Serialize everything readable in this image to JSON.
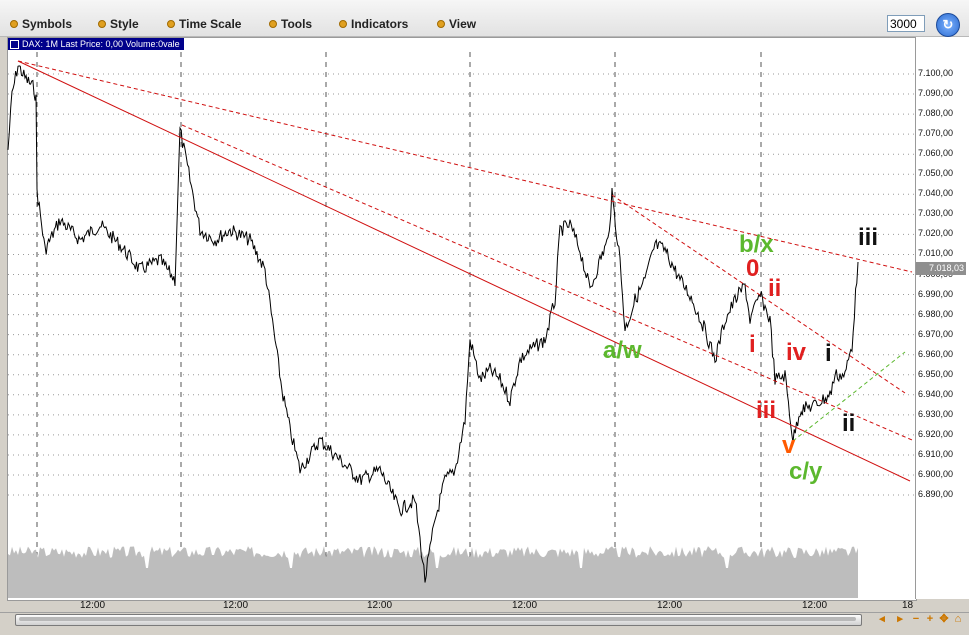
{
  "menu": {
    "symbols": "Symbols",
    "style": "Style",
    "time_scale": "Time Scale",
    "tools": "Tools",
    "indicators": "Indicators",
    "view": "View"
  },
  "interval_value": "3000",
  "legend_text": "DAX: 1M Last Price: 0,00 Volume:0vale",
  "last_price_tag": "7.018,03",
  "price_ticks": [
    "7.100,00",
    "7.090,00",
    "7.080,00",
    "7.070,00",
    "7.060,00",
    "7.050,00",
    "7.040,00",
    "7.030,00",
    "7.020,00",
    "7.010,00",
    "7.000,00",
    "6.990,00",
    "6.980,00",
    "6.970,00",
    "6.960,00",
    "6.950,00",
    "6.940,00",
    "6.930,00",
    "6.920,00",
    "6.910,00",
    "6.900,00",
    "6.890,00"
  ],
  "time_ticks": [
    "12:00",
    "12:00",
    "12:00",
    "12:00",
    "12:00",
    "12:00",
    "18"
  ],
  "wave_labels": {
    "aw": "a/w",
    "bx": "b/x",
    "cy": "c/y",
    "zero": "0",
    "i_red": "i",
    "ii_red": "ii",
    "iii_red": "iii",
    "iv_red": "iv",
    "v_red": "v",
    "i_black": "i",
    "ii_black": "ii",
    "iii_black": "iii"
  },
  "colors": {
    "green": "#5cb82e",
    "red": "#e02020",
    "black": "#111111",
    "orange": "#ff5a00",
    "legend_bg": "#00008b"
  }
}
